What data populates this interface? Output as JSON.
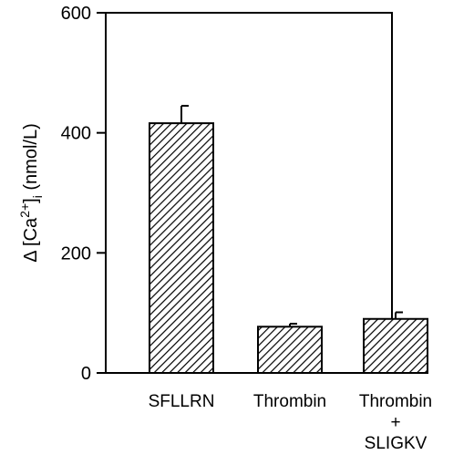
{
  "chart_data": {
    "type": "bar",
    "categories": [
      [
        "SFLLRN"
      ],
      [
        "Thrombin"
      ],
      [
        "Thrombin",
        "+",
        "SLIGKV"
      ]
    ],
    "values": [
      416,
      77,
      90
    ],
    "errors": [
      29,
      5,
      11
    ],
    "ylabel": {
      "prefix": "Δ [Ca",
      "superscript": "2+",
      "close": "]",
      "subscript": "i",
      "suffix": " (nmol/L)"
    },
    "ylim": [
      0,
      600
    ],
    "yticks": [
      0,
      200,
      400,
      600
    ],
    "bar_fill": "hatched",
    "grid": false
  }
}
